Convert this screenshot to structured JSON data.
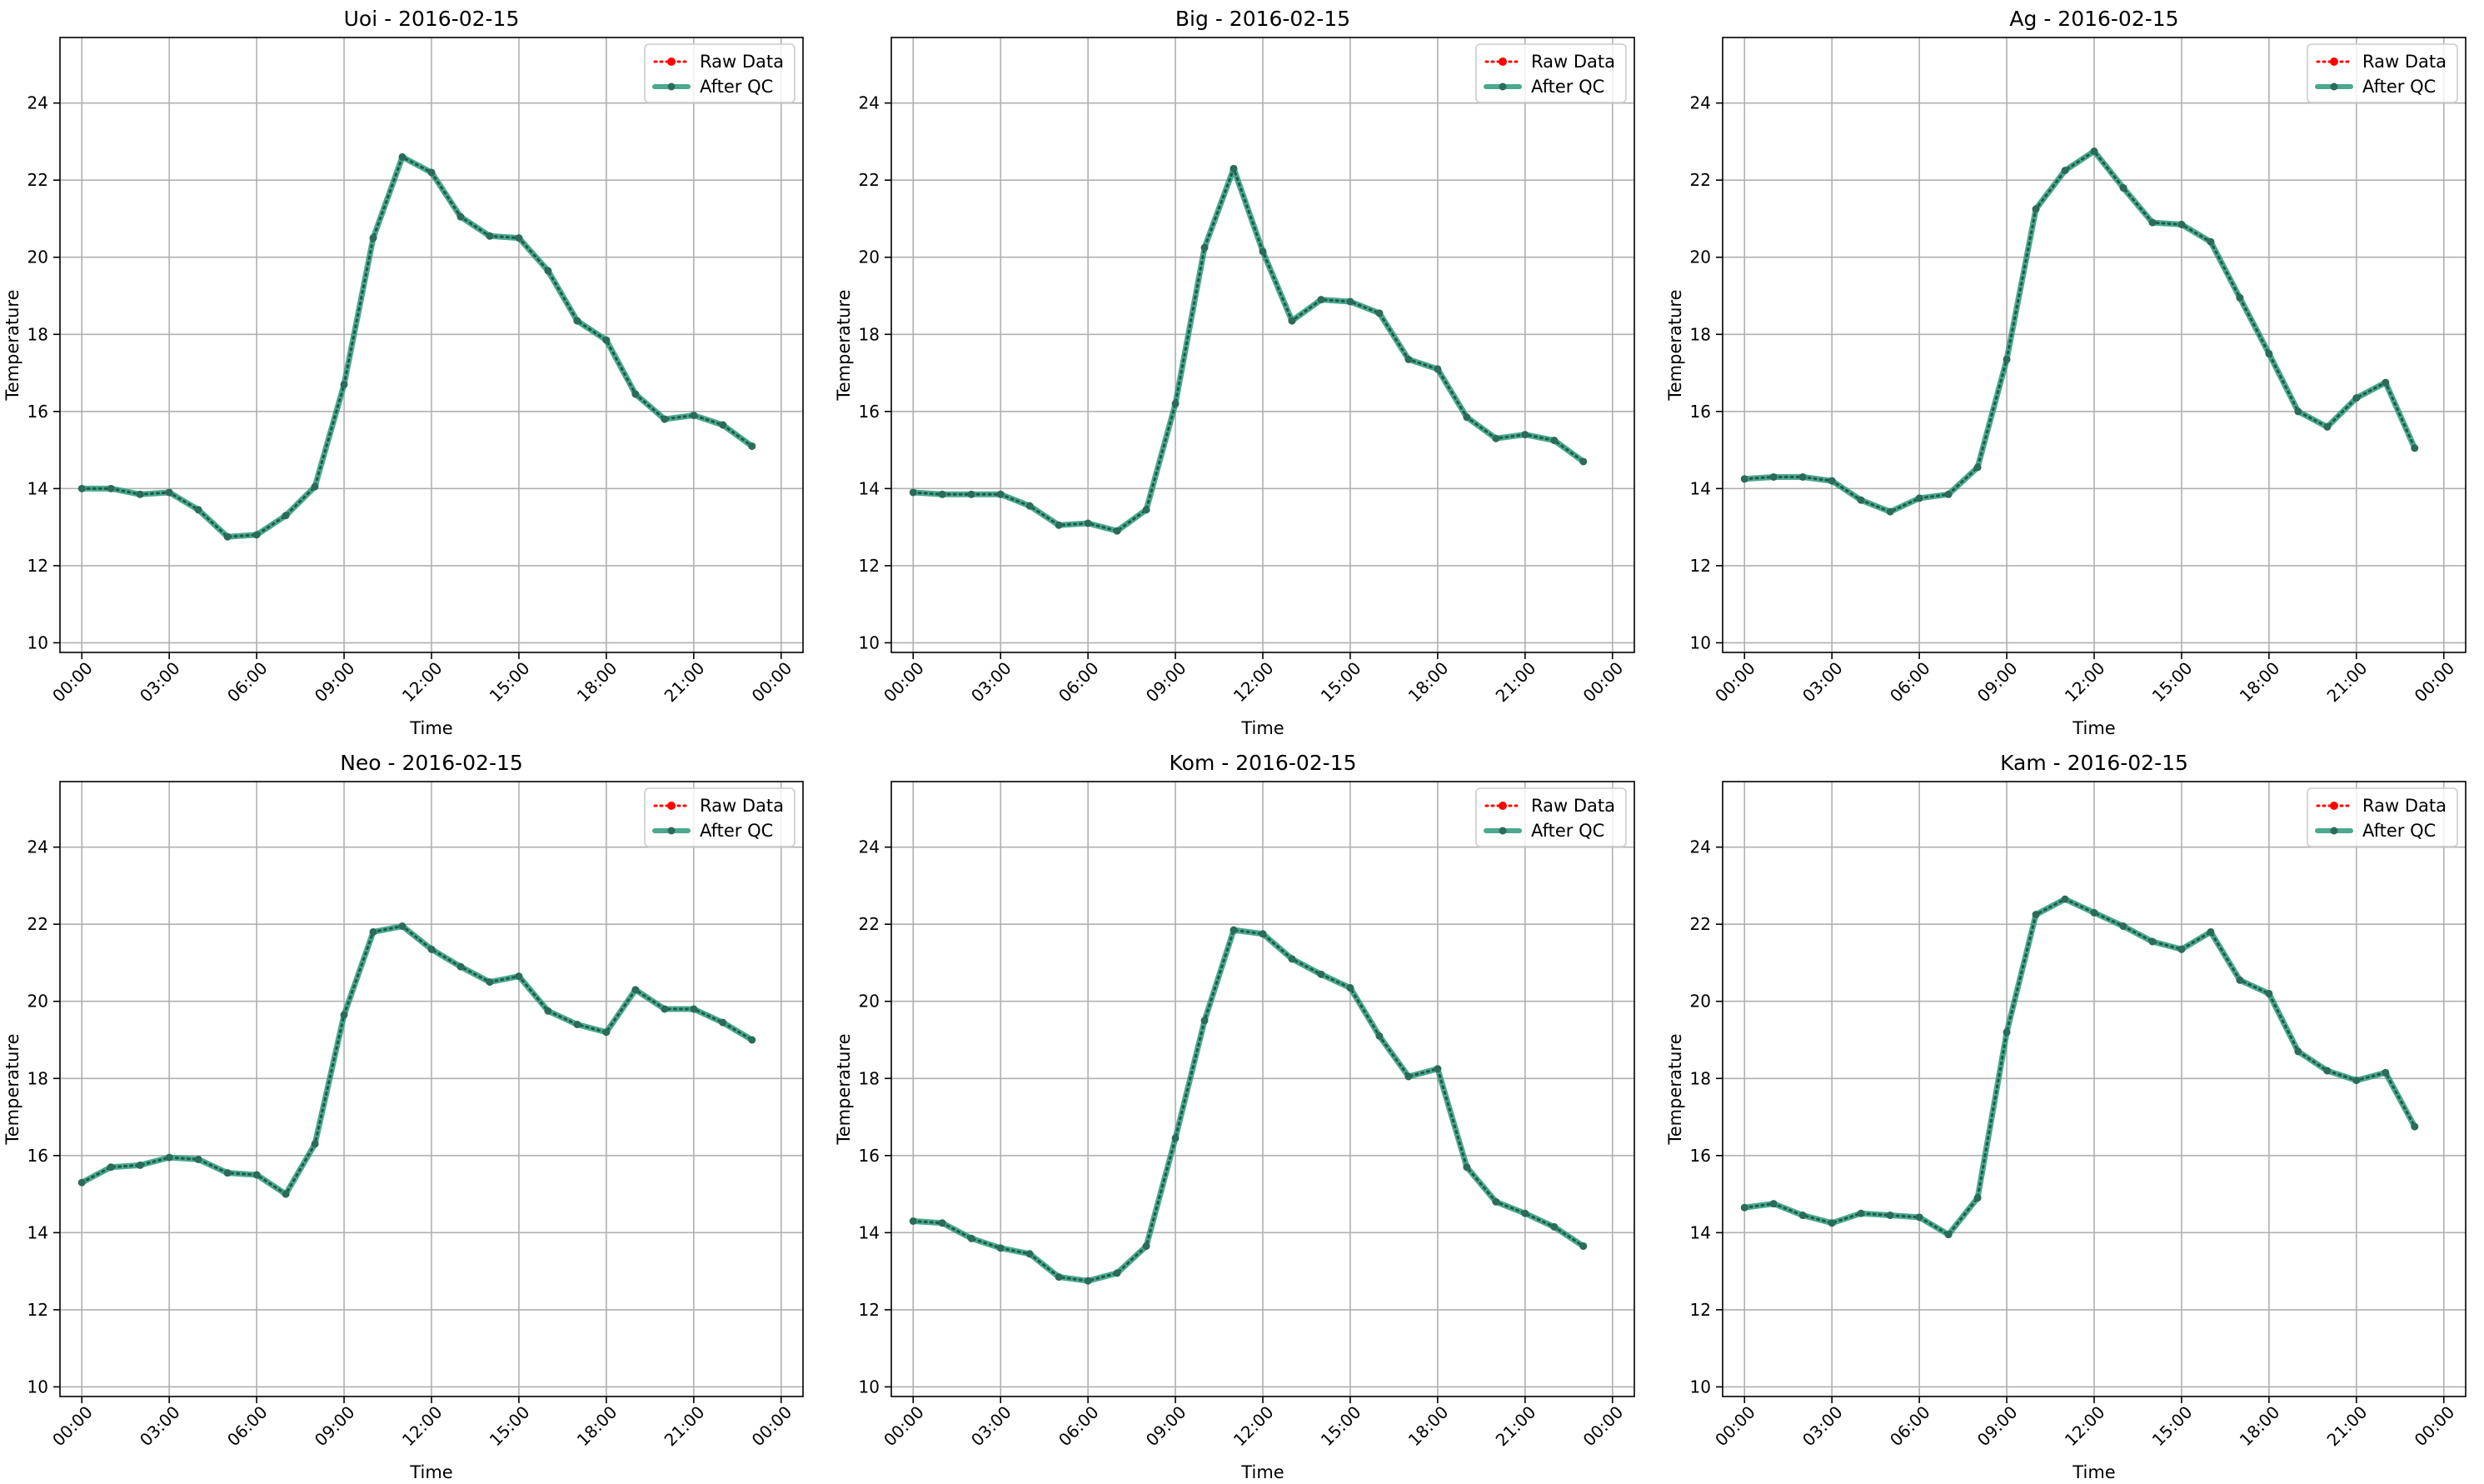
{
  "chart_data": [
    {
      "type": "line",
      "title": "Uoi - 2016-02-15",
      "xlabel": "Time",
      "ylabel": "Temperature",
      "ylim": [
        9.75,
        25.7
      ],
      "xlim": [
        "2016-02-14 23:15",
        "2016-02-16 00:45"
      ],
      "yticks": [
        10,
        12,
        14,
        16,
        18,
        20,
        22,
        24
      ],
      "xticks": [
        "00:00",
        "03:00",
        "06:00",
        "09:00",
        "12:00",
        "15:00",
        "18:00",
        "21:00",
        "00:00"
      ],
      "x": [
        "00:00",
        "01:00",
        "02:00",
        "03:00",
        "04:00",
        "05:00",
        "06:00",
        "07:00",
        "08:00",
        "09:00",
        "10:00",
        "11:00",
        "12:00",
        "13:00",
        "14:00",
        "15:00",
        "16:00",
        "17:00",
        "18:00",
        "19:00",
        "20:00",
        "21:00",
        "22:00",
        "23:00"
      ],
      "grid": true,
      "legend": "top-right",
      "series": [
        {
          "name": "Raw Data",
          "color": "#ff0000",
          "style": "dotted",
          "values": [
            14.0,
            14.0,
            13.85,
            13.9,
            13.45,
            12.75,
            12.8,
            13.3,
            14.05,
            16.7,
            20.5,
            22.6,
            22.2,
            21.05,
            20.55,
            20.5,
            19.65,
            18.35,
            17.85,
            16.45,
            15.8,
            15.9,
            15.65,
            15.1
          ]
        },
        {
          "name": "After QC",
          "color": "#2a9a7a",
          "style": "solid",
          "values": [
            14.0,
            14.0,
            13.85,
            13.9,
            13.45,
            12.75,
            12.8,
            13.3,
            14.05,
            16.7,
            20.5,
            22.6,
            22.2,
            21.05,
            20.55,
            20.5,
            19.65,
            18.35,
            17.85,
            16.45,
            15.8,
            15.9,
            15.65,
            15.1
          ]
        }
      ]
    },
    {
      "type": "line",
      "title": "Big - 2016-02-15",
      "xlabel": "Time",
      "ylabel": "Temperature",
      "ylim": [
        9.75,
        25.7
      ],
      "xlim": [
        "2016-02-14 23:15",
        "2016-02-16 00:45"
      ],
      "yticks": [
        10,
        12,
        14,
        16,
        18,
        20,
        22,
        24
      ],
      "xticks": [
        "00:00",
        "03:00",
        "06:00",
        "09:00",
        "12:00",
        "15:00",
        "18:00",
        "21:00",
        "00:00"
      ],
      "x": [
        "00:00",
        "01:00",
        "02:00",
        "03:00",
        "04:00",
        "05:00",
        "06:00",
        "07:00",
        "08:00",
        "09:00",
        "10:00",
        "11:00",
        "12:00",
        "13:00",
        "14:00",
        "15:00",
        "16:00",
        "17:00",
        "18:00",
        "19:00",
        "20:00",
        "21:00",
        "22:00",
        "23:00"
      ],
      "grid": true,
      "legend": "top-right",
      "series": [
        {
          "name": "Raw Data",
          "color": "#ff0000",
          "style": "dotted",
          "values": [
            13.9,
            13.85,
            13.85,
            13.85,
            13.55,
            13.05,
            13.1,
            12.9,
            13.45,
            16.2,
            20.25,
            22.3,
            20.15,
            18.35,
            18.9,
            18.85,
            18.55,
            17.35,
            17.1,
            15.85,
            15.3,
            15.4,
            15.25,
            14.7
          ]
        },
        {
          "name": "After QC",
          "color": "#2a9a7a",
          "style": "solid",
          "values": [
            13.9,
            13.85,
            13.85,
            13.85,
            13.55,
            13.05,
            13.1,
            12.9,
            13.45,
            16.2,
            20.25,
            22.3,
            20.15,
            18.35,
            18.9,
            18.85,
            18.55,
            17.35,
            17.1,
            15.85,
            15.3,
            15.4,
            15.25,
            14.7
          ]
        }
      ]
    },
    {
      "type": "line",
      "title": "Ag - 2016-02-15",
      "xlabel": "Time",
      "ylabel": "Temperature",
      "ylim": [
        9.75,
        25.7
      ],
      "xlim": [
        "2016-02-14 23:15",
        "2016-02-16 00:45"
      ],
      "yticks": [
        10,
        12,
        14,
        16,
        18,
        20,
        22,
        24
      ],
      "xticks": [
        "00:00",
        "03:00",
        "06:00",
        "09:00",
        "12:00",
        "15:00",
        "18:00",
        "21:00",
        "00:00"
      ],
      "x": [
        "00:00",
        "01:00",
        "02:00",
        "03:00",
        "04:00",
        "05:00",
        "06:00",
        "07:00",
        "08:00",
        "09:00",
        "10:00",
        "11:00",
        "12:00",
        "13:00",
        "14:00",
        "15:00",
        "16:00",
        "17:00",
        "18:00",
        "19:00",
        "20:00",
        "21:00",
        "22:00",
        "23:00"
      ],
      "grid": true,
      "legend": "top-right",
      "series": [
        {
          "name": "Raw Data",
          "color": "#ff0000",
          "style": "dotted",
          "values": [
            14.25,
            14.3,
            14.3,
            14.2,
            13.7,
            13.4,
            13.75,
            13.85,
            14.55,
            17.35,
            21.25,
            22.25,
            22.75,
            21.8,
            20.9,
            20.85,
            20.4,
            18.95,
            17.5,
            16.0,
            15.6,
            16.35,
            16.75,
            15.05
          ]
        },
        {
          "name": "After QC",
          "color": "#2a9a7a",
          "style": "solid",
          "values": [
            14.25,
            14.3,
            14.3,
            14.2,
            13.7,
            13.4,
            13.75,
            13.85,
            14.55,
            17.35,
            21.25,
            22.25,
            22.75,
            21.8,
            20.9,
            20.85,
            20.4,
            18.95,
            17.5,
            16.0,
            15.6,
            16.35,
            16.75,
            15.05
          ]
        }
      ]
    },
    {
      "type": "line",
      "title": "Neo - 2016-02-15",
      "xlabel": "Time",
      "ylabel": "Temperature",
      "ylim": [
        9.75,
        25.7
      ],
      "xlim": [
        "2016-02-14 23:15",
        "2016-02-16 00:45"
      ],
      "yticks": [
        10,
        12,
        14,
        16,
        18,
        20,
        22,
        24
      ],
      "xticks": [
        "00:00",
        "03:00",
        "06:00",
        "09:00",
        "12:00",
        "15:00",
        "18:00",
        "21:00",
        "00:00"
      ],
      "x": [
        "00:00",
        "01:00",
        "02:00",
        "03:00",
        "04:00",
        "05:00",
        "06:00",
        "07:00",
        "08:00",
        "09:00",
        "10:00",
        "11:00",
        "12:00",
        "13:00",
        "14:00",
        "15:00",
        "16:00",
        "17:00",
        "18:00",
        "19:00",
        "20:00",
        "21:00",
        "22:00",
        "23:00"
      ],
      "grid": true,
      "legend": "top-right",
      "series": [
        {
          "name": "Raw Data",
          "color": "#ff0000",
          "style": "dotted",
          "values": [
            15.3,
            15.7,
            15.75,
            15.95,
            15.9,
            15.55,
            15.5,
            15.0,
            16.3,
            19.65,
            21.8,
            21.95,
            21.35,
            20.9,
            20.5,
            20.65,
            19.75,
            19.4,
            19.2,
            20.3,
            19.8,
            19.8,
            19.45,
            19.0
          ]
        },
        {
          "name": "After QC",
          "color": "#2a9a7a",
          "style": "solid",
          "values": [
            15.3,
            15.7,
            15.75,
            15.95,
            15.9,
            15.55,
            15.5,
            15.0,
            16.3,
            19.65,
            21.8,
            21.95,
            21.35,
            20.9,
            20.5,
            20.65,
            19.75,
            19.4,
            19.2,
            20.3,
            19.8,
            19.8,
            19.45,
            19.0
          ]
        }
      ]
    },
    {
      "type": "line",
      "title": "Kom - 2016-02-15",
      "xlabel": "Time",
      "ylabel": "Temperature",
      "ylim": [
        9.75,
        25.7
      ],
      "xlim": [
        "2016-02-14 23:15",
        "2016-02-16 00:45"
      ],
      "yticks": [
        10,
        12,
        14,
        16,
        18,
        20,
        22,
        24
      ],
      "xticks": [
        "00:00",
        "03:00",
        "06:00",
        "09:00",
        "12:00",
        "15:00",
        "18:00",
        "21:00",
        "00:00"
      ],
      "x": [
        "00:00",
        "01:00",
        "02:00",
        "03:00",
        "04:00",
        "05:00",
        "06:00",
        "07:00",
        "08:00",
        "09:00",
        "10:00",
        "11:00",
        "12:00",
        "13:00",
        "14:00",
        "15:00",
        "16:00",
        "17:00",
        "18:00",
        "19:00",
        "20:00",
        "21:00",
        "22:00",
        "23:00"
      ],
      "grid": true,
      "legend": "top-right",
      "series": [
        {
          "name": "Raw Data",
          "color": "#ff0000",
          "style": "dotted",
          "values": [
            14.3,
            14.25,
            13.85,
            13.6,
            13.45,
            12.85,
            12.75,
            12.95,
            13.65,
            16.45,
            19.5,
            21.85,
            21.75,
            21.1,
            20.7,
            20.35,
            19.1,
            18.05,
            18.25,
            15.7,
            14.8,
            14.5,
            14.15,
            13.65
          ]
        },
        {
          "name": "After QC",
          "color": "#2a9a7a",
          "style": "solid",
          "values": [
            14.3,
            14.25,
            13.85,
            13.6,
            13.45,
            12.85,
            12.75,
            12.95,
            13.65,
            16.45,
            19.5,
            21.85,
            21.75,
            21.1,
            20.7,
            20.35,
            19.1,
            18.05,
            18.25,
            15.7,
            14.8,
            14.5,
            14.15,
            13.65
          ]
        }
      ]
    },
    {
      "type": "line",
      "title": "Kam - 2016-02-15",
      "xlabel": "Time",
      "ylabel": "Temperature",
      "ylim": [
        9.75,
        25.7
      ],
      "xlim": [
        "2016-02-14 23:15",
        "2016-02-16 00:45"
      ],
      "yticks": [
        10,
        12,
        14,
        16,
        18,
        20,
        22,
        24
      ],
      "xticks": [
        "00:00",
        "03:00",
        "06:00",
        "09:00",
        "12:00",
        "15:00",
        "18:00",
        "21:00",
        "00:00"
      ],
      "x": [
        "00:00",
        "01:00",
        "02:00",
        "03:00",
        "04:00",
        "05:00",
        "06:00",
        "07:00",
        "08:00",
        "09:00",
        "10:00",
        "11:00",
        "12:00",
        "13:00",
        "14:00",
        "15:00",
        "16:00",
        "17:00",
        "18:00",
        "19:00",
        "20:00",
        "21:00",
        "22:00",
        "23:00"
      ],
      "grid": true,
      "legend": "top-right",
      "series": [
        {
          "name": "Raw Data",
          "color": "#ff0000",
          "style": "dotted",
          "values": [
            14.65,
            14.75,
            14.45,
            14.25,
            14.5,
            14.45,
            14.4,
            13.95,
            14.9,
            19.2,
            22.25,
            22.65,
            22.3,
            21.95,
            21.55,
            21.35,
            21.8,
            20.55,
            20.2,
            18.7,
            18.2,
            17.95,
            18.15,
            16.75
          ]
        },
        {
          "name": "After QC",
          "color": "#2a9a7a",
          "style": "solid",
          "values": [
            14.65,
            14.75,
            14.45,
            14.25,
            14.5,
            14.45,
            14.4,
            13.95,
            14.9,
            19.2,
            22.25,
            22.65,
            22.3,
            21.95,
            21.55,
            21.35,
            21.8,
            20.55,
            20.2,
            18.7,
            18.2,
            17.95,
            18.15,
            16.75
          ]
        }
      ]
    }
  ]
}
